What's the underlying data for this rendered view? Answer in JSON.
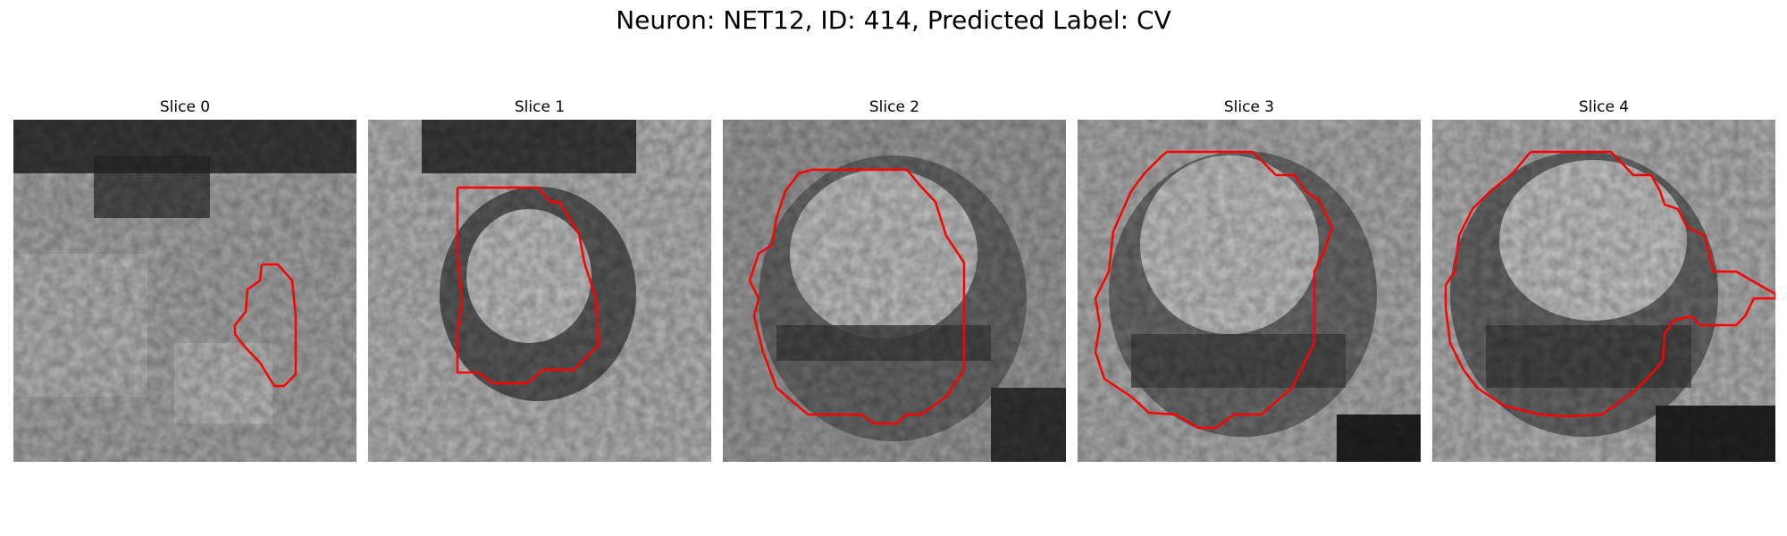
{
  "figure": {
    "title": "Neuron: NET12, ID: 414, Predicted Label: CV"
  },
  "colors": {
    "contour": "#ff0000",
    "background": "#ffffff"
  },
  "panels": [
    {
      "title": "Slice 0"
    },
    {
      "title": "Slice 1"
    },
    {
      "title": "Slice 2"
    },
    {
      "title": "Slice 3"
    },
    {
      "title": "Slice 4"
    }
  ]
}
